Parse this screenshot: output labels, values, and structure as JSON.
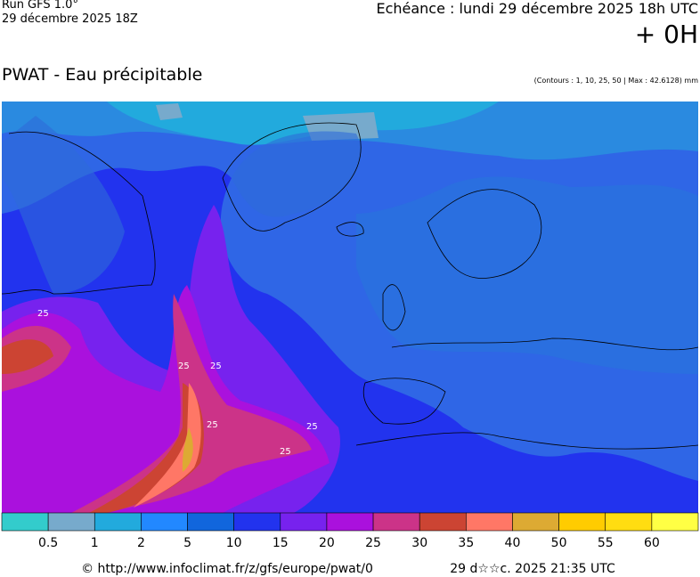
{
  "header": {
    "run": "Run GFS 1.0°",
    "run_date": "29 décembre 2025 18Z",
    "valid_time": "Echéance : lundi 29 décembre 2025 18h UTC",
    "lead": "+ 0H",
    "title": "PWAT - Eau précipitable",
    "contours_note": "(Contours : 1, 10, 25, 50 | Max : 42.6128) mm"
  },
  "map": {
    "contour_labels": [
      "25",
      "25",
      "25",
      "25",
      "25",
      "25"
    ]
  },
  "legend": {
    "colors": [
      "#33cccc",
      "#77aacc",
      "#22aadd",
      "#2288ff",
      "#1166dd",
      "#2233ee",
      "#7722ee",
      "#aa11dd",
      "#cc3388",
      "#cc4433",
      "#ff7766",
      "#ddaa33",
      "#ffcc00",
      "#ffdd11",
      "#ffff44"
    ],
    "labels": [
      "0.5",
      "1",
      "2",
      "5",
      "10",
      "15",
      "20",
      "25",
      "30",
      "35",
      "40",
      "50",
      "55",
      "60"
    ]
  },
  "footer": {
    "url": "© http://www.infoclimat.fr/z/gfs/europe/pwat/0",
    "generated": "29 d☆☆c. 2025 21:35 UTC"
  }
}
